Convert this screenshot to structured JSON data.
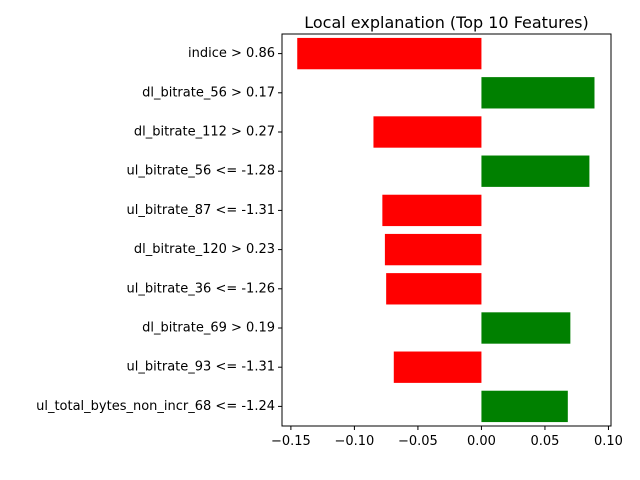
{
  "chart_data": {
    "type": "bar",
    "orientation": "horizontal",
    "title": "Local explanation (Top 10 Features)",
    "xlabel": "",
    "ylabel": "",
    "xlim": [
      -0.157,
      0.102
    ],
    "xticks": [
      -0.15,
      -0.1,
      -0.05,
      0.0,
      0.05,
      0.1
    ],
    "xtick_labels": [
      "−0.15",
      "−0.10",
      "−0.05",
      "0.00",
      "0.05",
      "0.10"
    ],
    "grid": false,
    "legend": "none",
    "colors": {
      "positive": "#008000",
      "negative": "#ff0000"
    },
    "categories": [
      "indice > 0.86",
      "dl_bitrate_56 > 0.17",
      "dl_bitrate_112 > 0.27",
      "ul_bitrate_56 <= -1.28",
      "ul_bitrate_87 <= -1.31",
      "dl_bitrate_120 > 0.23",
      "ul_bitrate_36 <= -1.26",
      "dl_bitrate_69 > 0.19",
      "ul_bitrate_93 <= -1.31",
      "ul_total_bytes_non_incr_68 <= -1.24"
    ],
    "values": [
      -0.145,
      0.089,
      -0.085,
      0.085,
      -0.078,
      -0.076,
      -0.075,
      0.07,
      -0.069,
      0.068
    ]
  }
}
